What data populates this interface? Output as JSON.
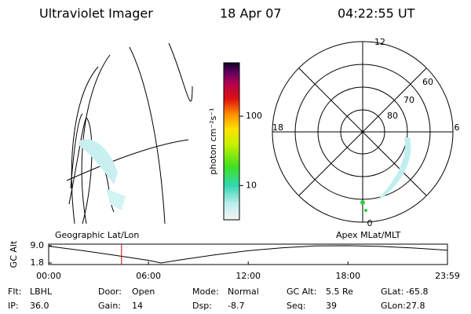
{
  "header": {
    "instrument": "Ultraviolet Imager",
    "date": "18 Apr 07",
    "time": "04:22:55 UT"
  },
  "colorbar": {
    "label": "photon cm⁻²s⁻¹",
    "lim": [
      3.2,
      590
    ],
    "log": true,
    "ticks": [
      10,
      100
    ]
  },
  "polar": {
    "mlt_labels": [
      "12",
      "18",
      "6",
      "0"
    ],
    "lat_labels": [
      "60",
      "70",
      "80"
    ]
  },
  "altitude_plot": {
    "ylabel": "GC Alt",
    "left_title": "Geographic Lat/Lon",
    "right_title": "Apex MLat/MLT",
    "ylim": [
      1.8,
      9.0
    ],
    "yticks": [
      {
        "value": 9.0,
        "label": "9.0"
      },
      {
        "value": 1.8,
        "label": "1.8"
      }
    ],
    "xlim": [
      0,
      23.98
    ],
    "xticks": [
      {
        "value": 0,
        "label": "00:00"
      },
      {
        "value": 6,
        "label": "06:00"
      },
      {
        "value": 12,
        "label": "12:00"
      },
      {
        "value": 18,
        "label": "18:00"
      },
      {
        "value": 23.98,
        "label": "23:59"
      }
    ],
    "hours": [
      0,
      2,
      4,
      6,
      6.75,
      8,
      10,
      12,
      14,
      16,
      18,
      20,
      22,
      23.98
    ],
    "values": [
      8.8,
      7.0,
      5.0,
      2.9,
      1.8,
      3.2,
      5.2,
      6.9,
      8.1,
      8.9,
      9.0,
      8.7,
      8.0,
      7.1
    ],
    "marker_hours": 4.38
  },
  "footer": {
    "rows": [
      [
        {
          "label": "Flt:",
          "value": "LBHL"
        },
        {
          "label": "Door:",
          "value": "Open"
        },
        {
          "label": "Mode:",
          "value": "Normal"
        },
        {
          "label": "GC Alt:",
          "value": "5.5 Re"
        },
        {
          "label": "GLat:",
          "value": "-65.8"
        }
      ],
      [
        {
          "label": "IP:",
          "value": "36.0"
        },
        {
          "label": "Gain:",
          "value": "14"
        },
        {
          "label": "Dsp:",
          "value": "-8.7"
        },
        {
          "label": "Seq:",
          "value": "39"
        },
        {
          "label": "GLon:",
          "value": "27.8"
        }
      ]
    ]
  }
}
